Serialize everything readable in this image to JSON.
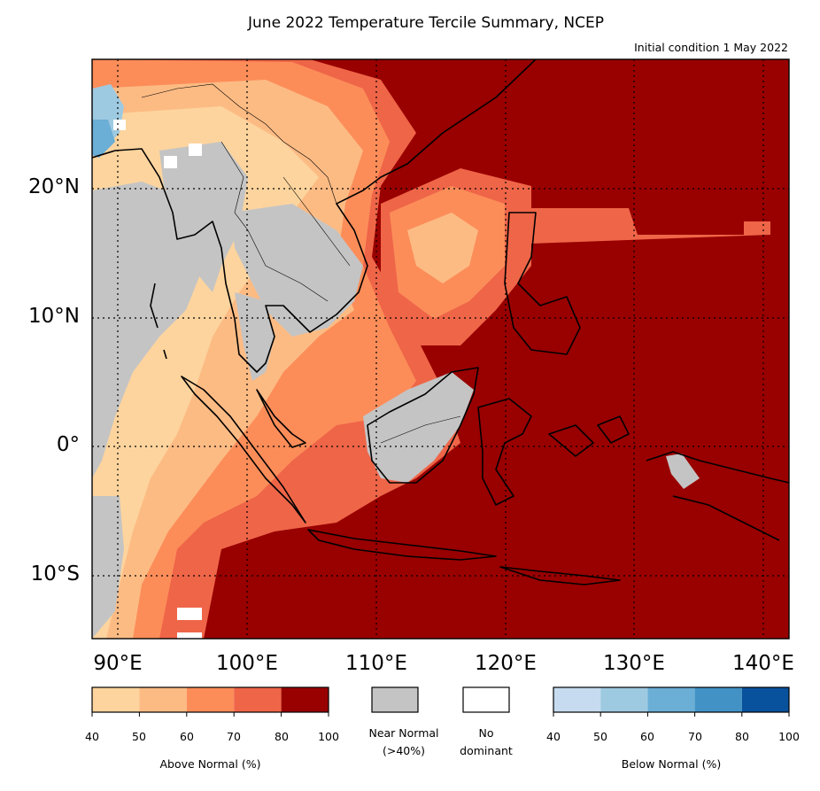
{
  "title": "June 2022 Temperature Tercile Summary, NCEP",
  "subtitle": "Initial condition 1 May 2022",
  "map": {
    "lon_range": [
      88,
      142
    ],
    "lat_range": [
      -15,
      30
    ],
    "lon_labels": [
      "90°E",
      "100°E",
      "110°E",
      "120°E",
      "130°E",
      "140°E"
    ],
    "lat_labels": [
      "20°N",
      "10°N",
      "0°",
      "10°S"
    ],
    "gridlines": "dotted"
  },
  "legend": {
    "above": {
      "title": "Above Normal (%)",
      "ticks": [
        "40",
        "50",
        "60",
        "70",
        "80",
        "100"
      ],
      "colors": [
        "#fdd49e",
        "#fdbb84",
        "#fc8d59",
        "#ef6548",
        "#990000"
      ]
    },
    "near_normal": {
      "line1": "Near Normal",
      "line2": "(>40%)",
      "color": "#c4c4c4"
    },
    "no_dominant": {
      "line1": "No",
      "line2": "dominant",
      "color": "#ffffff"
    },
    "below": {
      "title": "Below Normal (%)",
      "ticks": [
        "40",
        "50",
        "60",
        "70",
        "80",
        "100"
      ],
      "colors": [
        "#c6dbef",
        "#9ecae1",
        "#6baed6",
        "#4292c6",
        "#08519c"
      ]
    }
  }
}
